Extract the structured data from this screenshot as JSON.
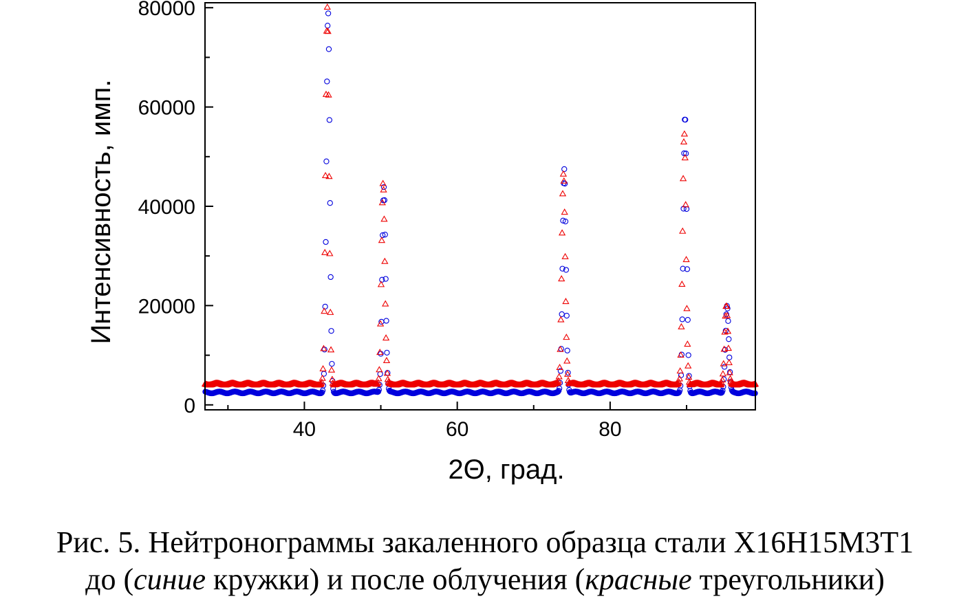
{
  "chart_data": {
    "type": "scatter",
    "xlabel": "2Θ, град.",
    "ylabel": "Интенсивность, имп.",
    "xlim": [
      27,
      99
    ],
    "ylim": [
      -1000,
      81000
    ],
    "x_ticks": [
      40,
      60,
      80
    ],
    "y_ticks": [
      0,
      20000,
      40000,
      60000,
      80000
    ],
    "x_minor_step": 10,
    "grid": false,
    "legend": "none",
    "series": [
      {
        "marker": "circle",
        "color": "#0000dd",
        "baseline": 2500,
        "peaks": [
          {
            "x": 43.1,
            "y": 79000
          },
          {
            "x": 50.4,
            "y": 44000
          },
          {
            "x": 74.0,
            "y": 47500
          },
          {
            "x": 89.8,
            "y": 58200
          },
          {
            "x": 95.3,
            "y": 20000
          }
        ]
      },
      {
        "marker": "triangle",
        "color": "#ee0000",
        "baseline": 4200,
        "peaks": [
          {
            "x": 43.0,
            "y": 80000
          },
          {
            "x": 50.3,
            "y": 44800
          },
          {
            "x": 73.9,
            "y": 46800
          },
          {
            "x": 89.7,
            "y": 54700
          },
          {
            "x": 95.2,
            "y": 20000
          }
        ]
      }
    ]
  },
  "caption": {
    "line1": "Рис. 5. Нейтронограммы закаленного образца стали Х16Н15М3Т1",
    "line2_start": "до (",
    "line2_italic1": "синие",
    "line2_mid": " кружки) и после облучения (",
    "line2_italic2": "красные",
    "line2_end": " треугольники)"
  }
}
